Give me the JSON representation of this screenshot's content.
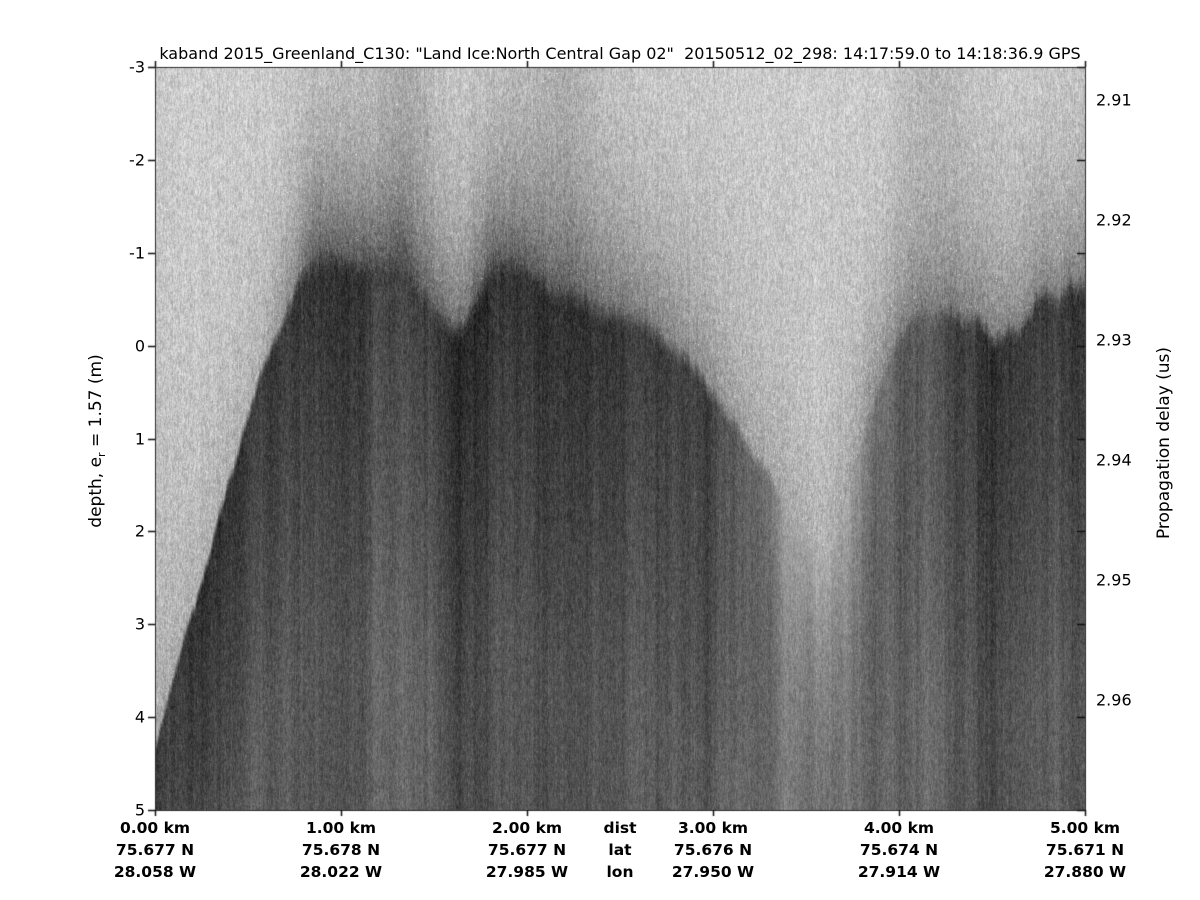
{
  "title": "kaband 2015_Greenland_C130: \"Land Ice:North Central Gap 02\"  20150512_02_298: 14:17:59.0 to 14:18:36.9 GPS",
  "left_axis": {
    "label_prefix": "depth, e",
    "label_sub": "r",
    "label_suffix": " = 1.57 (m)",
    "ticks": [
      "-3",
      "-2",
      "-1",
      "0",
      "1",
      "2",
      "3",
      "4",
      "5"
    ]
  },
  "right_axis": {
    "label": "Propagation delay (us)",
    "ticks": [
      "2.91",
      "2.92",
      "2.93",
      "2.94",
      "2.95",
      "2.96"
    ]
  },
  "bottom_axis": {
    "header": {
      "dist": "dist",
      "lat": "lat",
      "lon": "lon"
    },
    "columns": [
      {
        "dist": "0.00 km",
        "lat": "75.677 N",
        "lon": "28.058 W"
      },
      {
        "dist": "1.00 km",
        "lat": "75.678 N",
        "lon": "28.022 W"
      },
      {
        "dist": "2.00 km",
        "lat": "75.677 N",
        "lon": "27.985 W"
      },
      {
        "dist": "3.00 km",
        "lat": "75.676 N",
        "lon": "27.950 W"
      },
      {
        "dist": "4.00 km",
        "lat": "75.674 N",
        "lon": "27.914 W"
      },
      {
        "dist": "5.00 km",
        "lat": "75.671 N",
        "lon": "27.880 W"
      }
    ]
  },
  "chart_data": {
    "type": "heatmap",
    "title": "kaband 2015_Greenland_C130: \"Land Ice:North Central Gap 02\"  20150512_02_298: 14:17:59.0 to 14:18:36.9 GPS",
    "xlabel": "dist (km)",
    "ylabel_left": "depth, e_r = 1.57 (m)",
    "ylabel_right": "Propagation delay (us)",
    "x_range_km": [
      0,
      5
    ],
    "depth_range_m": [
      -3,
      5
    ],
    "x_ticks_km": [
      0,
      1,
      2,
      3,
      4,
      5
    ],
    "depth_ticks_m": [
      -3,
      -2,
      -1,
      0,
      1,
      2,
      3,
      4,
      5
    ],
    "delay_ticks_us": [
      2.91,
      2.92,
      2.93,
      2.94,
      2.95,
      2.96
    ],
    "delay_tick_depths_m": [
      -2.64,
      -1.35,
      -0.06,
      1.23,
      2.52,
      3.81
    ],
    "colormap": "grayscale echogram: light = weak radar return (air), dark = strong return (snow/firn)",
    "geo_table": [
      {
        "km": 0.0,
        "lat": "75.677 N",
        "lon": "28.058 W"
      },
      {
        "km": 1.0,
        "lat": "75.678 N",
        "lon": "28.022 W"
      },
      {
        "km": 2.0,
        "lat": "75.677 N",
        "lon": "27.985 W"
      },
      {
        "km": 3.0,
        "lat": "75.676 N",
        "lon": "27.950 W"
      },
      {
        "km": 4.0,
        "lat": "75.674 N",
        "lon": "27.914 W"
      },
      {
        "km": 5.0,
        "lat": "75.671 N",
        "lon": "27.880 W"
      }
    ],
    "surface_profile": [
      [
        0.0,
        4.3
      ],
      [
        0.19,
        2.95
      ],
      [
        0.43,
        1.18
      ],
      [
        0.62,
        0.0
      ],
      [
        0.78,
        -0.67
      ],
      [
        0.88,
        -0.9
      ],
      [
        1.1,
        -0.84
      ],
      [
        1.32,
        -0.81
      ],
      [
        1.45,
        -0.55
      ],
      [
        1.51,
        -0.44
      ],
      [
        1.58,
        -0.2
      ],
      [
        1.65,
        -0.15
      ],
      [
        1.75,
        -0.6
      ],
      [
        1.83,
        -0.84
      ],
      [
        1.92,
        -0.92
      ],
      [
        2.02,
        -0.75
      ],
      [
        2.11,
        -0.58
      ],
      [
        2.25,
        -0.45
      ],
      [
        2.39,
        -0.36
      ],
      [
        2.55,
        -0.25
      ],
      [
        2.72,
        -0.08
      ],
      [
        2.87,
        0.22
      ],
      [
        3.01,
        0.5
      ],
      [
        3.12,
        0.85
      ],
      [
        3.23,
        1.23
      ],
      [
        3.34,
        1.55
      ],
      [
        3.44,
        1.88
      ],
      [
        3.52,
        2.15
      ],
      [
        3.58,
        2.31
      ],
      [
        3.66,
        2.05
      ],
      [
        3.76,
        1.23
      ],
      [
        3.84,
        0.7
      ],
      [
        3.92,
        0.26
      ],
      [
        4.0,
        -0.1
      ],
      [
        4.09,
        -0.33
      ],
      [
        4.17,
        -0.3
      ],
      [
        4.25,
        -0.41
      ],
      [
        4.33,
        -0.25
      ],
      [
        4.41,
        -0.3
      ],
      [
        4.49,
        -0.06
      ],
      [
        4.57,
        -0.2
      ],
      [
        4.65,
        -0.18
      ],
      [
        4.73,
        -0.49
      ],
      [
        4.79,
        -0.62
      ],
      [
        4.86,
        -0.45
      ],
      [
        4.92,
        -0.68
      ],
      [
        5.0,
        -0.6
      ]
    ],
    "features": [
      "steep bright-to-dark diagonal at far left: surface rising from ~4.3 m depth at 0 km to a dark plateau near -0.9 m by ~0.9 km",
      "undulating dark firn mass from ~0.8 km to ~3 km with fuzzy fingered top and dark haze above it",
      "bright gap/valley centered near 3.55-3.6 km where the surface dips to ~2.3 m",
      "second dark mass from ~3.9 km to 5 km with top near -0.3 to -0.7 m",
      "speckle noise with vertical streaking throughout"
    ]
  }
}
